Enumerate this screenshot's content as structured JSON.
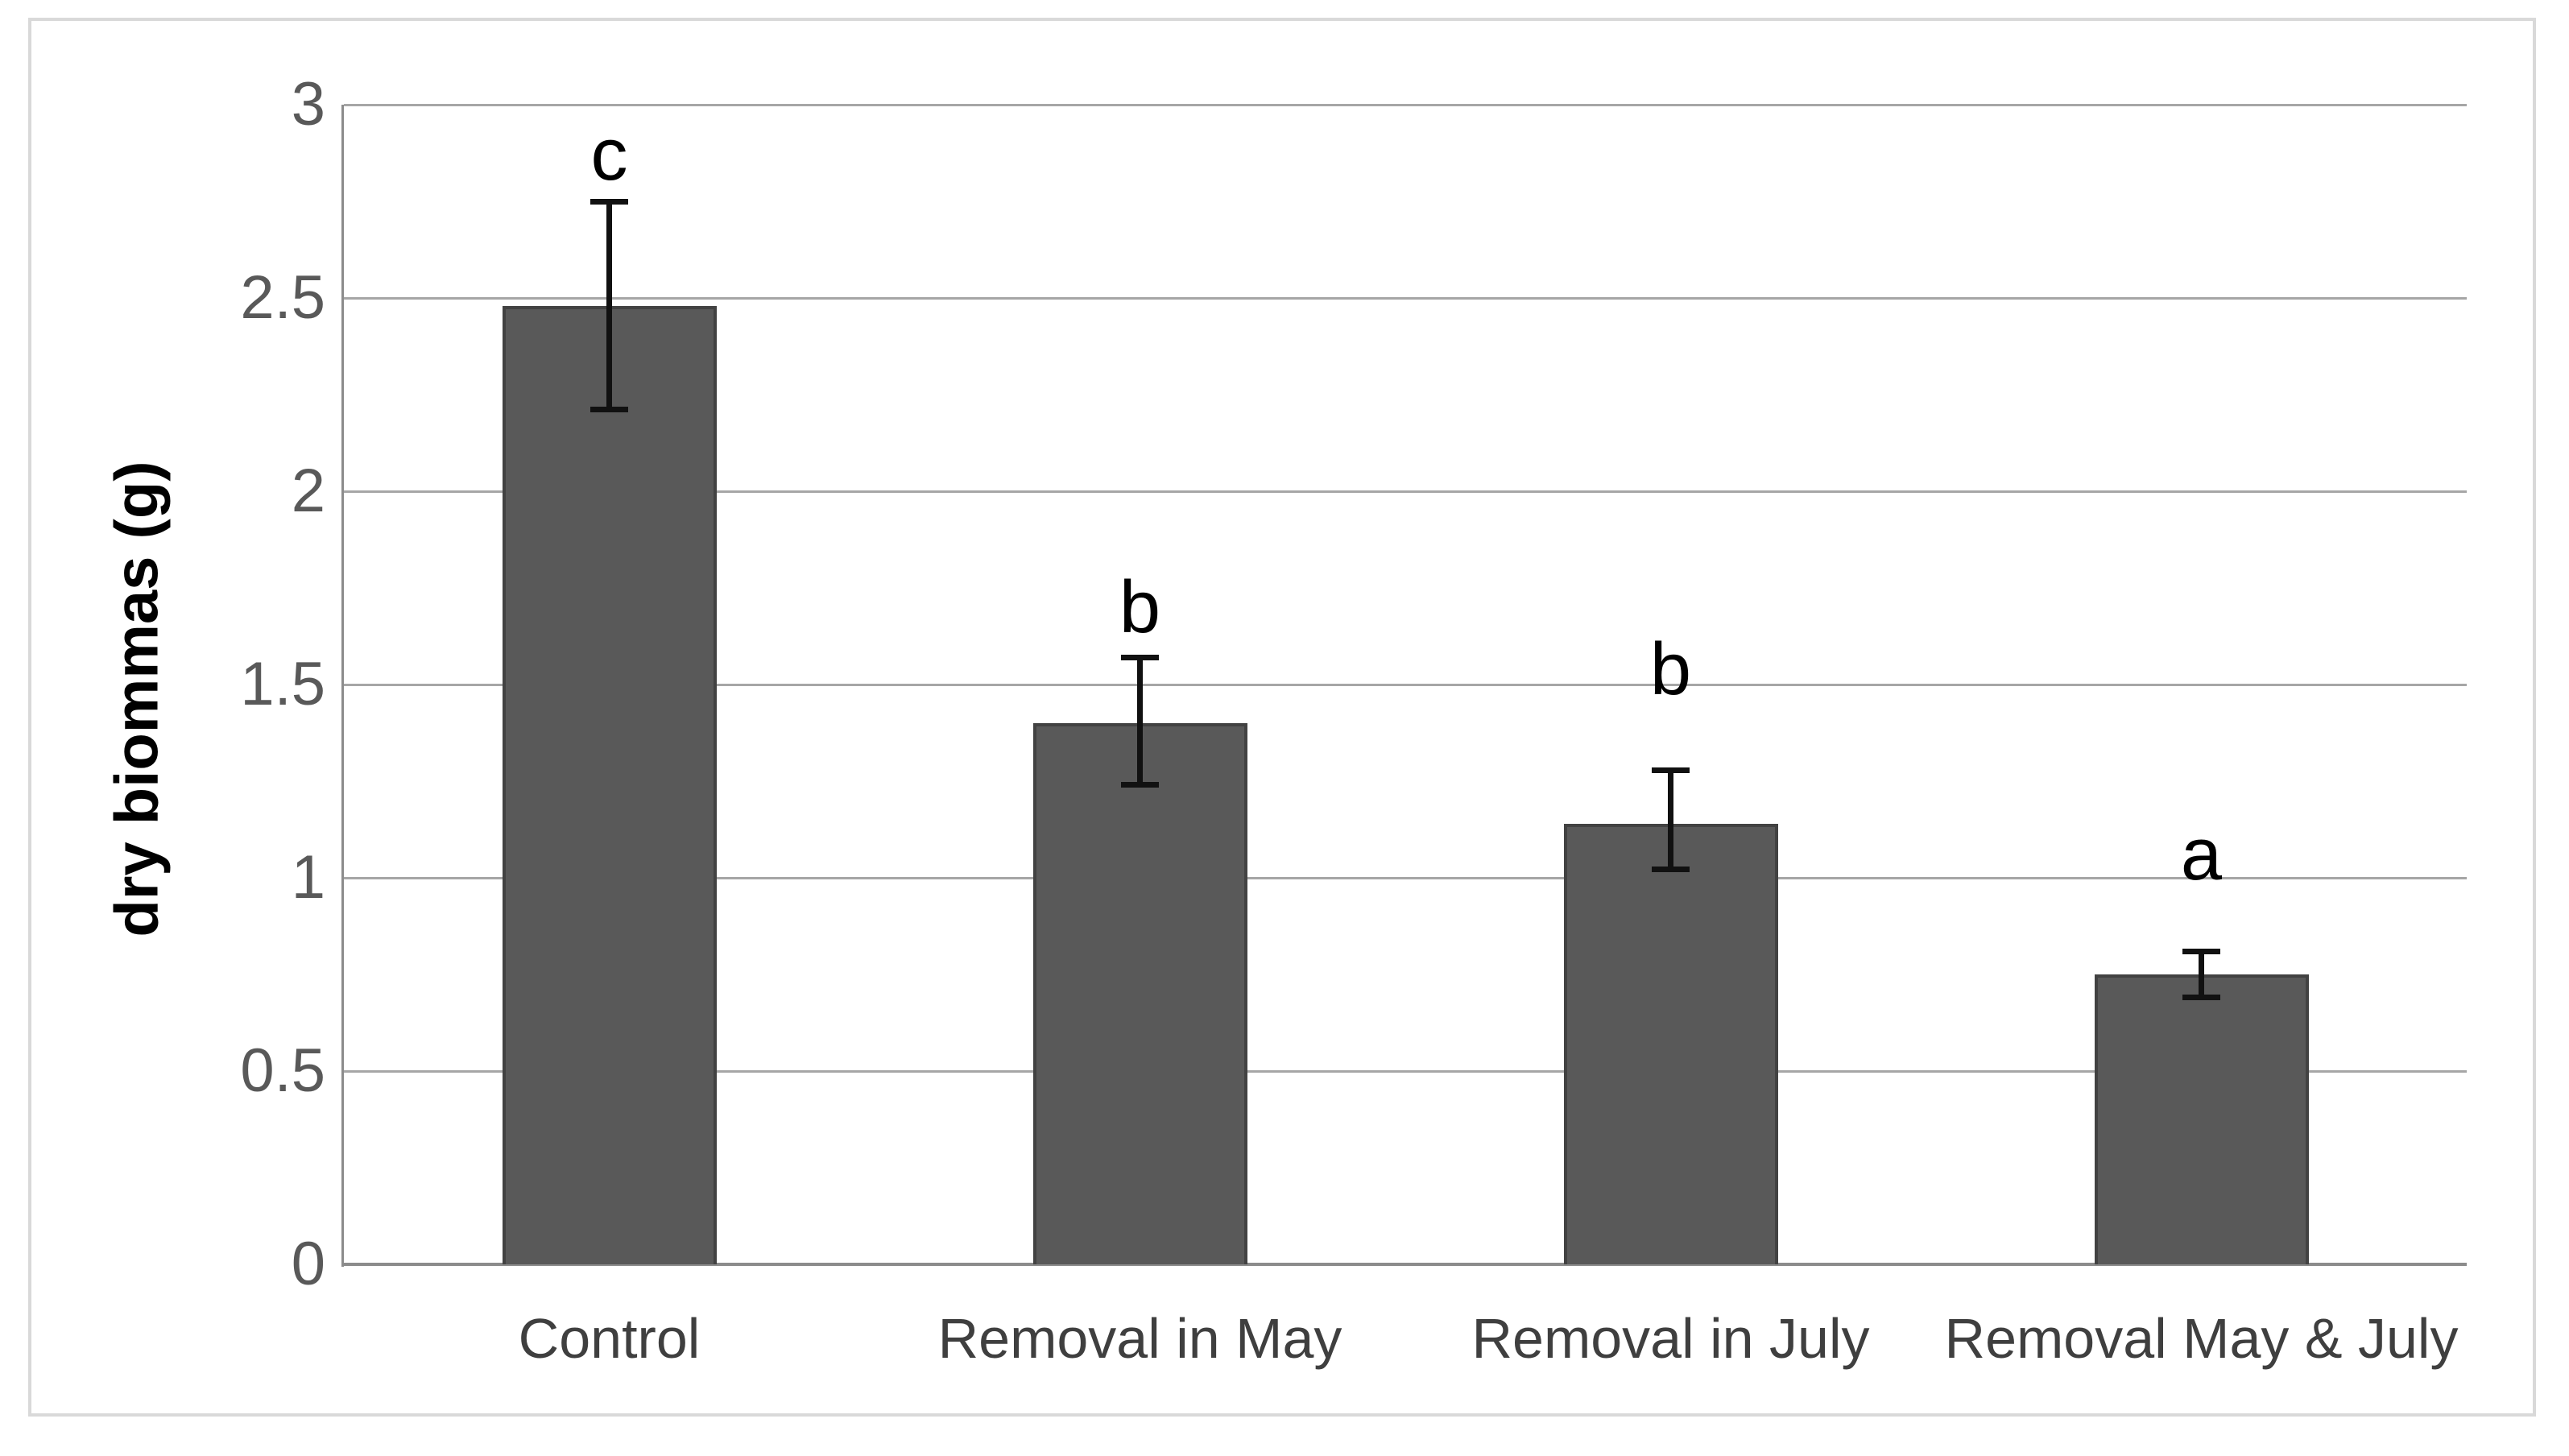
{
  "chart_data": {
    "type": "bar",
    "title": "",
    "xlabel": "",
    "ylabel": "dry biommas (g)",
    "ylim": [
      0,
      3
    ],
    "yticks": [
      0,
      0.5,
      1,
      1.5,
      2,
      2.5,
      3
    ],
    "ytick_labels": [
      "0",
      "0.5",
      "1",
      "1.5",
      "2",
      "2.5",
      "3"
    ],
    "grid": true,
    "legend": "none",
    "categories": [
      "Control",
      "Removal in May",
      "Removal in July",
      "Removal May & July"
    ],
    "values": [
      2.48,
      1.4,
      1.14,
      0.75
    ],
    "error_upper": [
      2.75,
      1.57,
      1.28,
      0.81
    ],
    "error_lower": [
      2.21,
      1.24,
      1.02,
      0.69
    ],
    "significance_letters": [
      "c",
      "b",
      "b",
      "a"
    ],
    "letter_y": [
      2.87,
      1.7,
      1.54,
      1.06
    ]
  },
  "colors": {
    "bar_fill": "#595959",
    "bar_border": "#424242",
    "gridline": "#a6a6a6",
    "axis": "#8c8c8c",
    "error_bar": "#111111",
    "tick_label": "#595959",
    "category_label": "#3f3f3f",
    "letter": "#000000",
    "frame_border": "#d9d9d9",
    "background": "#ffffff"
  }
}
